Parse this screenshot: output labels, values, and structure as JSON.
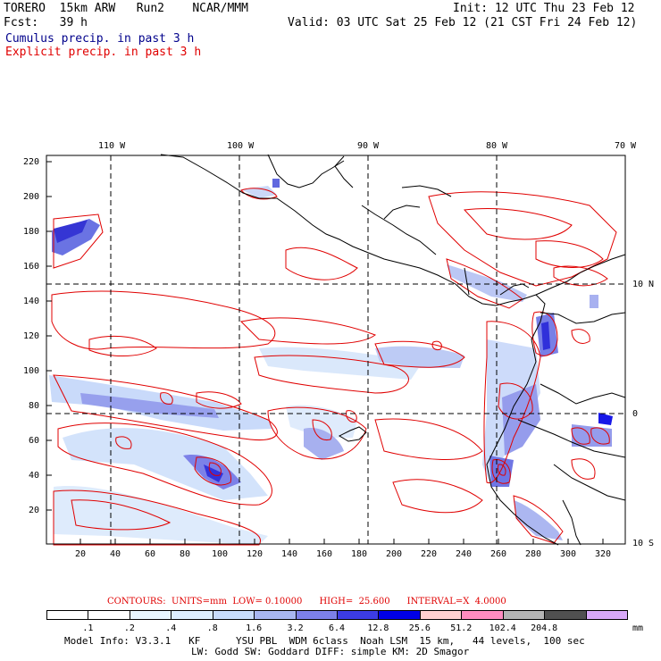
{
  "header": {
    "line1_left": "TORERO  15km ARW   Run2    NCAR/MMM",
    "line1_right": "Init: 12 UTC Thu 23 Feb 12",
    "line2_left": "Fcst:   39 h",
    "line2_right": "Valid: 03 UTC Sat 25 Feb 12 (21 CST Fri 24 Feb 12)",
    "cumulus_label": "Cumulus precip. in past 3 h",
    "explicit_label": "Explicit precip. in past 3 h",
    "cumulus_color": "#00008b",
    "explicit_color": "#e00000"
  },
  "map": {
    "top_lon_labels": [
      "110 W",
      "100 W",
      "90 W",
      "80 W",
      "70 W"
    ],
    "right_lat_labels": [
      "10 N",
      "0",
      "10 S"
    ],
    "y_tick_labels": [
      "220",
      "200",
      "180",
      "160",
      "140",
      "120",
      "100",
      "80",
      "60",
      "40",
      "20"
    ],
    "x_tick_labels": [
      "20",
      "40",
      "60",
      "80",
      "100",
      "120",
      "140",
      "160",
      "180",
      "200",
      "220",
      "240",
      "260",
      "280",
      "300",
      "320"
    ]
  },
  "contour_info": {
    "text": "CONTOURS:  UNITS=mm  LOW= 0.10000      HIGH=  25.600      INTERVAL=X  4.0000"
  },
  "colorbar": {
    "unit": "mm",
    "labels": [
      ".1",
      ".2",
      ".4",
      ".8",
      "1.6",
      "3.2",
      "6.4",
      "12.8",
      "25.6",
      "51.2",
      "102.4",
      "204.8"
    ],
    "colors": [
      "#ffffff",
      "#ffffff",
      "#e8f6ff",
      "#ddeeff",
      "#c8dcfa",
      "#a8b6f0",
      "#7c80e8",
      "#3c3ce4",
      "#0000e6",
      "#ffd0d0",
      "#ff8cc0",
      "#b4b4b4",
      "#505050",
      "#d8a8f8"
    ]
  },
  "footer": {
    "line1": "Model Info: V3.3.1   KF      YSU PBL  WDM 6class  Noah LSM  15 km,   44 levels,  100 sec",
    "line2": "LW: Godd SW: Goddard DIFF: simple KM: 2D Smagor"
  }
}
